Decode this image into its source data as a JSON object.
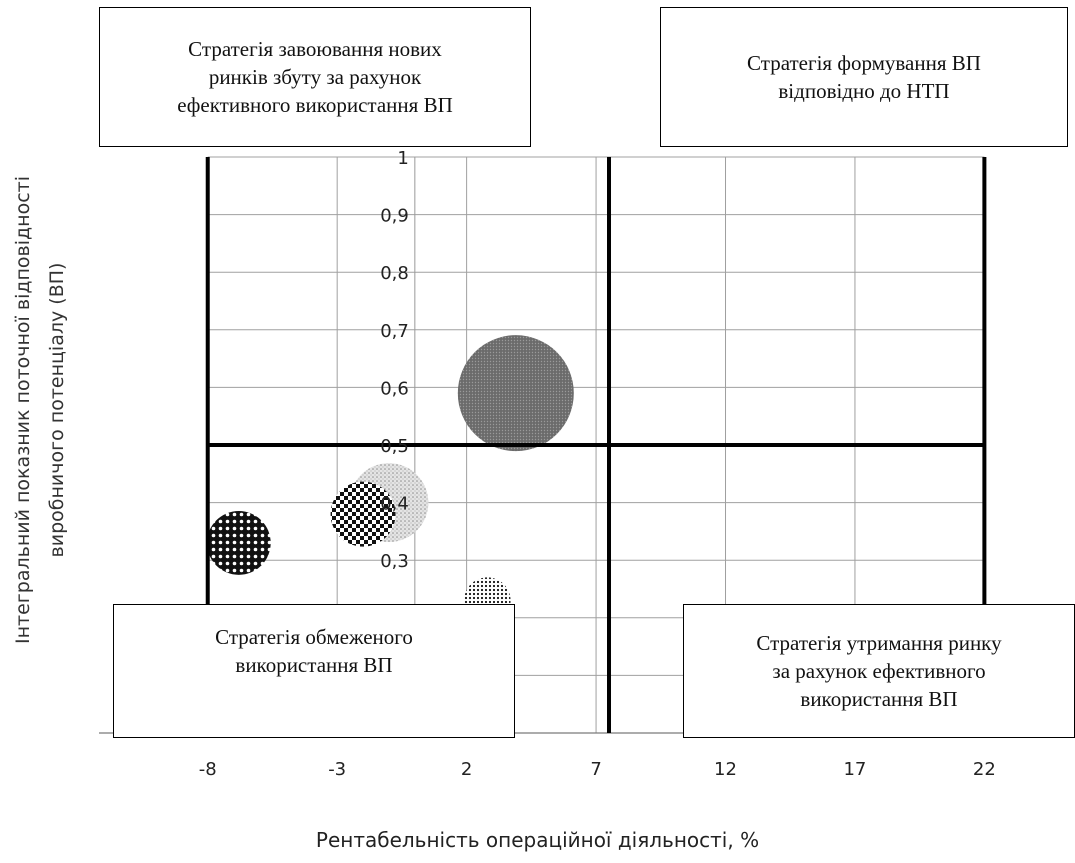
{
  "chart_data": {
    "type": "bubble",
    "xlabel": "Рентабельність операційної діяльності, %",
    "ylabel_lines": [
      "Інтегральний показник поточної відповідності",
      "виробничого потенціалу (ВП)"
    ],
    "x_ticks": [
      "-8",
      "-3",
      "2",
      "7",
      "12",
      "17",
      "22"
    ],
    "x_tick_values": [
      -8,
      -3,
      2,
      7,
      12,
      17,
      22
    ],
    "y_ticks": [
      "0,3",
      "0,4",
      "0,5",
      "0,6",
      "0,7",
      "0,8",
      "0,9",
      "1"
    ],
    "y_tick_values": [
      0.3,
      0.4,
      0.5,
      0.6,
      0.7,
      0.8,
      0.9,
      1.0
    ],
    "xlim": [
      -12.2,
      25.5
    ],
    "ylim": [
      0,
      1.0
    ],
    "grid": true,
    "axis_divider_x": 7.5,
    "axis_divider_y": 0.5,
    "series": [
      {
        "x": 3.9,
        "y": 0.59,
        "size": 1.0,
        "pattern": "dark-grey-dots"
      },
      {
        "x": -1.0,
        "y": 0.4,
        "size": 0.68,
        "pattern": "light-speckle"
      },
      {
        "x": -2.0,
        "y": 0.38,
        "size": 0.56,
        "pattern": "checker"
      },
      {
        "x": -6.8,
        "y": 0.33,
        "size": 0.55,
        "pattern": "black-dots"
      },
      {
        "x": 2.8,
        "y": 0.23,
        "size": 0.4,
        "pattern": "fine-dots"
      }
    ],
    "quadrants": {
      "top_left": "Стратегія завоювання нових\nринків збуту  за рахунок\nефективного використання ВП",
      "top_right": "Стратегія формування ВП\nвідповідно до НТП",
      "bottom_left": "Стратегія обмеженого\nвикористання ВП",
      "bottom_right": "Стратегія утримання ринку\nза рахунок ефективного\nвикористання ВП"
    }
  }
}
